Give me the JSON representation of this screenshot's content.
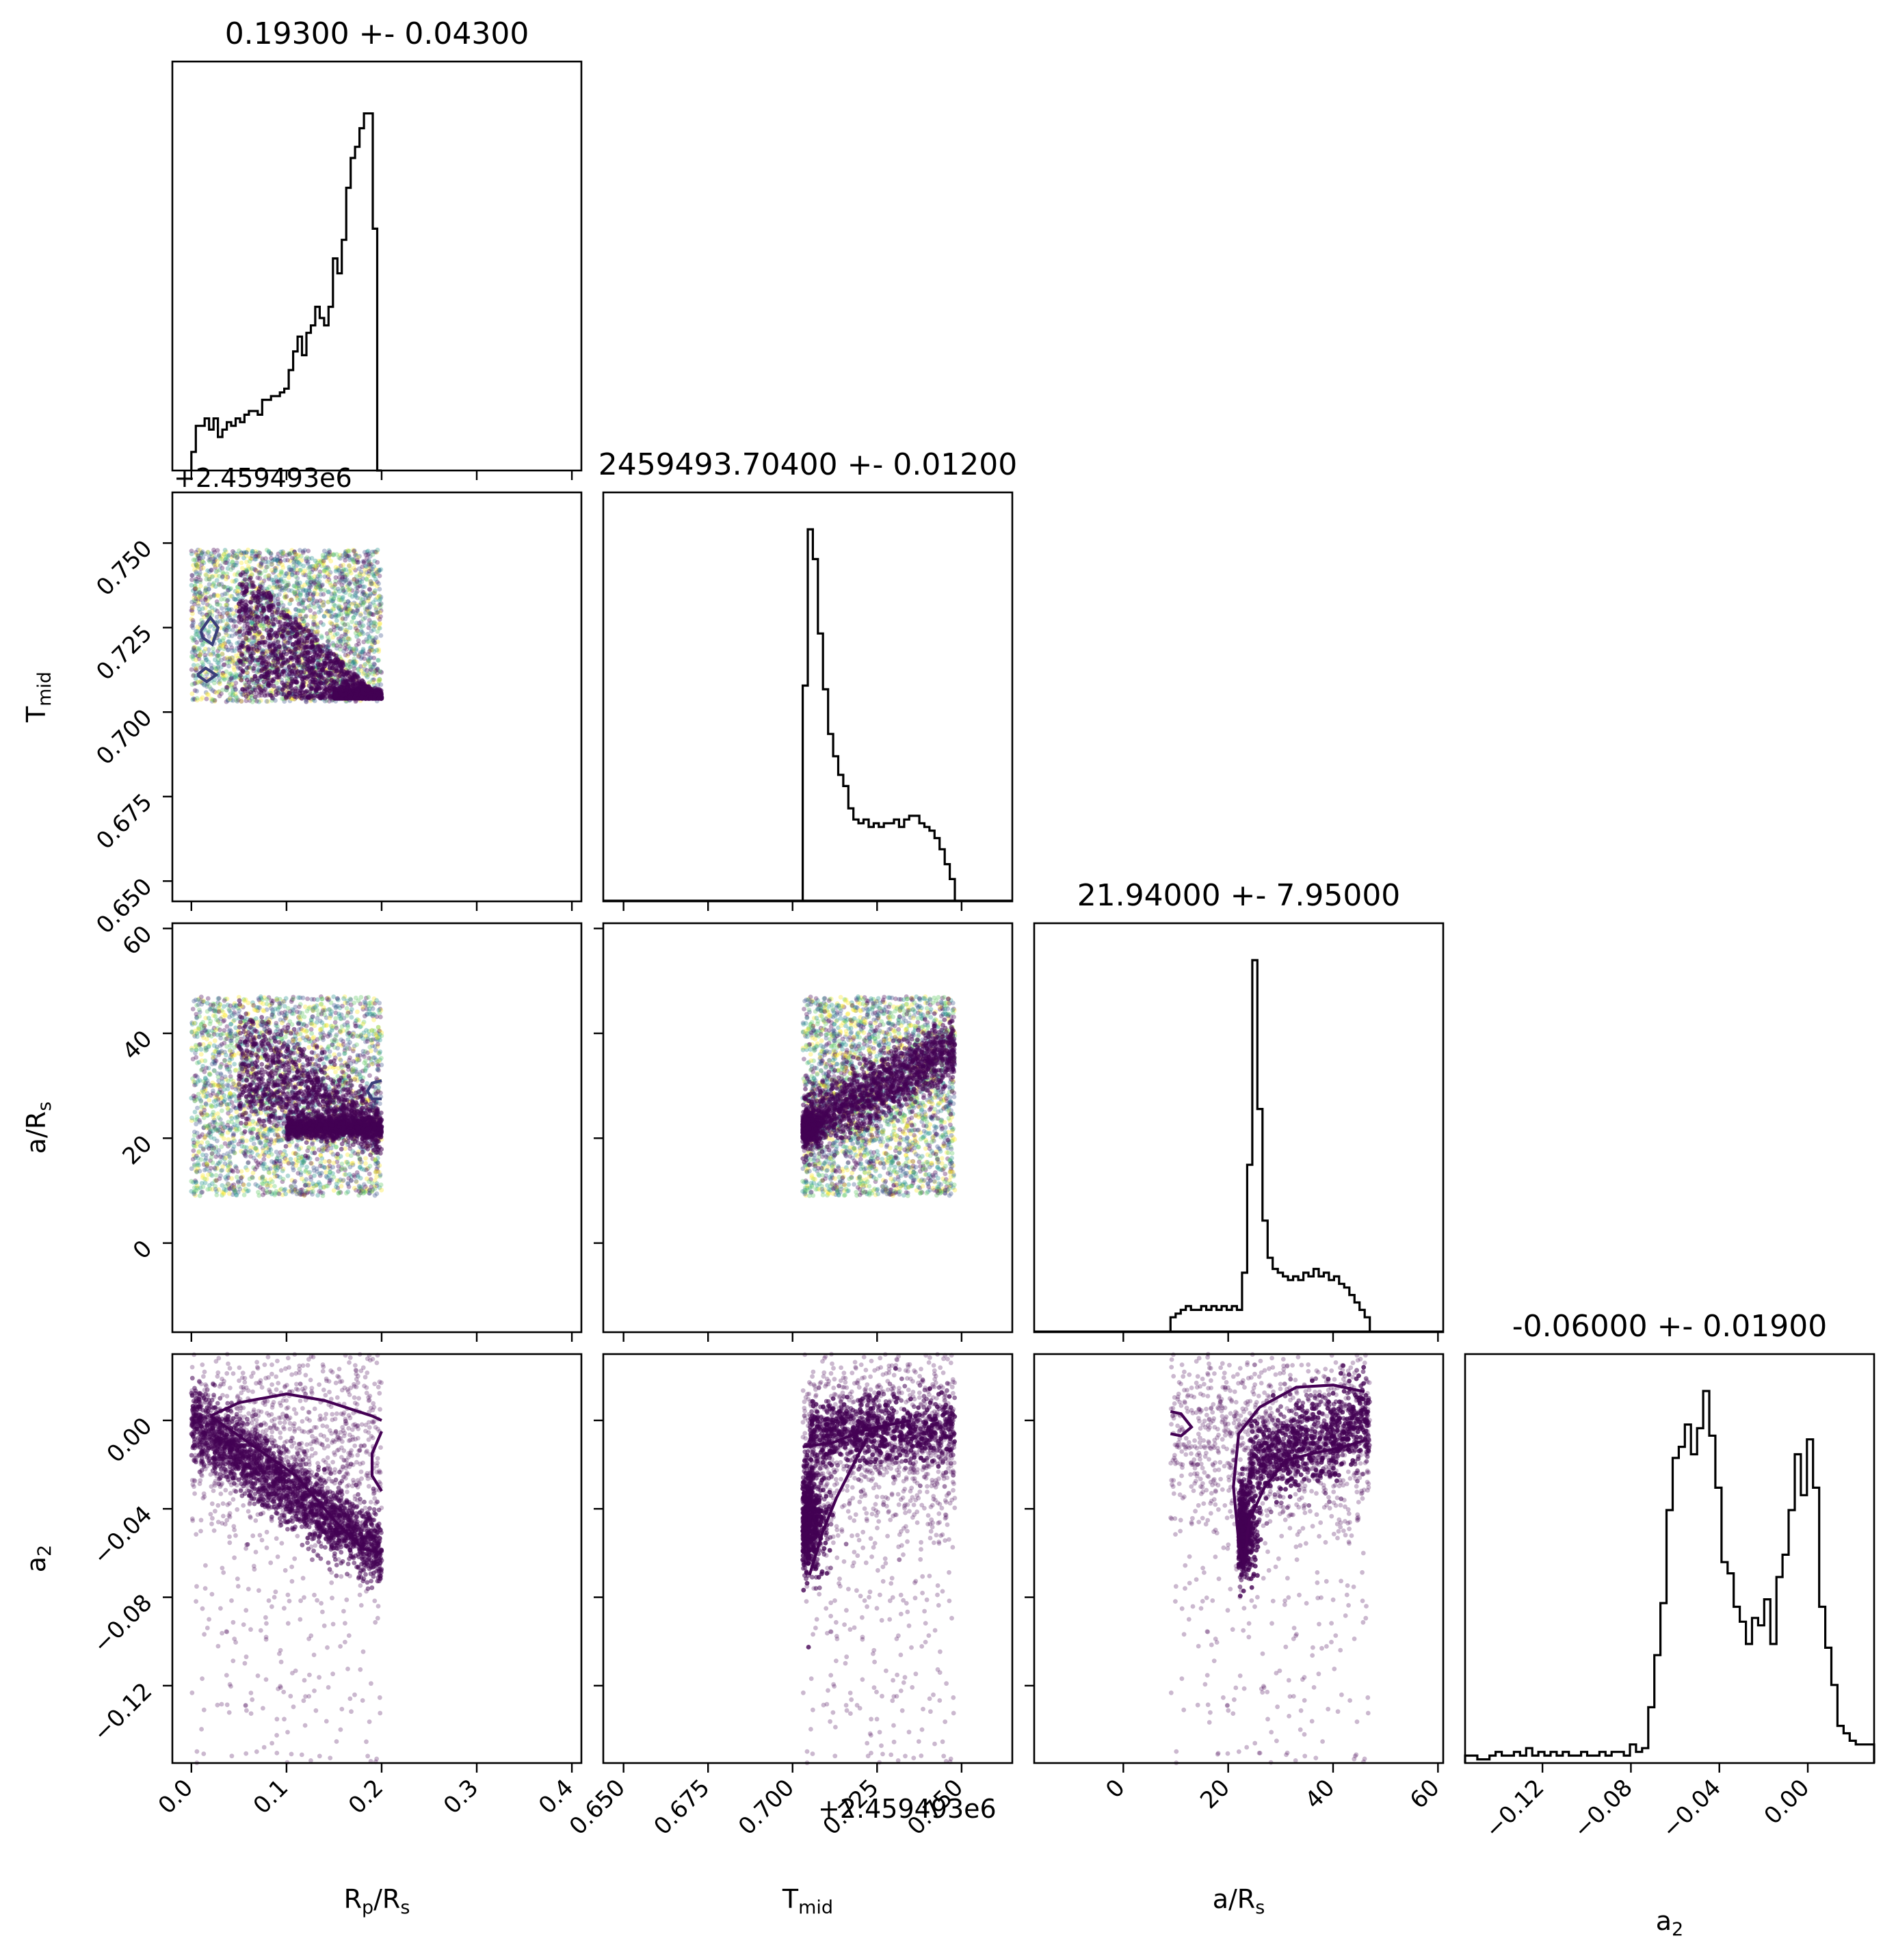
{
  "chart_data": {
    "type": "corner",
    "params": [
      {
        "key": "rp",
        "label": "R",
        "sub": "p",
        "label_rest": "/R",
        "sub2": "s",
        "title": "0.19300 +- 0.04300",
        "range": [
          -0.02,
          0.41
        ],
        "ticks": [
          0.0,
          0.1,
          0.2,
          0.3,
          0.4
        ],
        "tick_labels": [
          "0.0",
          "0.1",
          "0.2",
          "0.3",
          "0.4"
        ]
      },
      {
        "key": "tmid",
        "label": "T",
        "sub": "mid",
        "label_rest": "",
        "sub2": "",
        "title": "2459493.70400 +- 0.01200",
        "offset": "+2.459493e6",
        "range": [
          0.644,
          0.765
        ],
        "ticks": [
          0.65,
          0.675,
          0.7,
          0.725,
          0.75
        ],
        "tick_labels": [
          "0.650",
          "0.675",
          "0.700",
          "0.725",
          "0.750"
        ]
      },
      {
        "key": "ars",
        "label": "a/R",
        "sub": "s",
        "label_rest": "",
        "sub2": "",
        "title": "21.94000 +- 7.95000",
        "range": [
          -17,
          61
        ],
        "ticks": [
          0,
          20,
          40,
          60
        ],
        "tick_labels": [
          "0",
          "20",
          "40",
          "60"
        ]
      },
      {
        "key": "a2",
        "label": "a",
        "sub": "2",
        "label_rest": "",
        "sub2": "",
        "title": "-0.06000 +- 0.01900",
        "range": [
          -0.155,
          0.03
        ],
        "ticks": [
          -0.12,
          -0.08,
          -0.04,
          0.0
        ],
        "tick_labels": [
          "−0.12",
          "−0.08",
          "−0.04",
          "0.00"
        ]
      }
    ],
    "histograms": {
      "rp": {
        "bins": [
          0.0,
          0.2
        ],
        "counts": [
          0.05,
          0.12,
          0.12,
          0.14,
          0.11,
          0.14,
          0.09,
          0.11,
          0.13,
          0.12,
          0.14,
          0.13,
          0.15,
          0.16,
          0.16,
          0.15,
          0.19,
          0.19,
          0.2,
          0.2,
          0.21,
          0.22,
          0.27,
          0.32,
          0.36,
          0.31,
          0.37,
          0.39,
          0.44,
          0.41,
          0.39,
          0.44,
          0.57,
          0.53,
          0.62,
          0.76,
          0.84,
          0.87,
          0.92,
          0.96,
          0.96,
          0.65,
          0.0
        ]
      },
      "tmid": {
        "bins": [
          0.703,
          0.748
        ],
        "counts": [
          0.58,
          1.0,
          0.92,
          0.72,
          0.57,
          0.45,
          0.39,
          0.34,
          0.31,
          0.25,
          0.22,
          0.21,
          0.22,
          0.2,
          0.21,
          0.2,
          0.21,
          0.21,
          0.22,
          0.2,
          0.22,
          0.23,
          0.23,
          0.21,
          0.2,
          0.19,
          0.17,
          0.14,
          0.1,
          0.06
        ]
      },
      "ars": {
        "bins": [
          9,
          47
        ],
        "counts": [
          0.04,
          0.05,
          0.06,
          0.07,
          0.06,
          0.06,
          0.07,
          0.06,
          0.07,
          0.06,
          0.07,
          0.06,
          0.07,
          0.06,
          0.16,
          0.45,
          1.0,
          0.6,
          0.3,
          0.2,
          0.17,
          0.16,
          0.15,
          0.14,
          0.15,
          0.14,
          0.16,
          0.15,
          0.17,
          0.15,
          0.16,
          0.14,
          0.15,
          0.13,
          0.12,
          0.1,
          0.08,
          0.06,
          0.04
        ]
      },
      "a2": {
        "bins": [
          -0.155,
          0.03
        ],
        "counts": [
          0.02,
          0.02,
          0.01,
          0.01,
          0.02,
          0.03,
          0.02,
          0.02,
          0.03,
          0.02,
          0.04,
          0.02,
          0.03,
          0.02,
          0.03,
          0.02,
          0.03,
          0.02,
          0.02,
          0.03,
          0.02,
          0.02,
          0.03,
          0.02,
          0.03,
          0.03,
          0.02,
          0.05,
          0.03,
          0.04,
          0.15,
          0.29,
          0.43,
          0.68,
          0.82,
          0.85,
          0.91,
          0.83,
          0.9,
          1.0,
          0.88,
          0.74,
          0.54,
          0.51,
          0.42,
          0.38,
          0.32,
          0.39,
          0.37,
          0.44,
          0.32,
          0.5,
          0.56,
          0.68,
          0.83,
          0.72,
          0.87,
          0.74,
          0.42,
          0.31,
          0.21,
          0.1,
          0.08,
          0.06,
          0.05,
          0.05,
          0.05
        ]
      }
    },
    "samples": {
      "rp": [
        0.0,
        0.2
      ],
      "tmid": [
        0.703,
        0.748
      ],
      "ars": [
        9,
        47
      ],
      "a2": [
        -0.155,
        0.03
      ]
    },
    "grid": false,
    "colors": {
      "line": "#000000",
      "viridis": [
        "#440154",
        "#3b528b",
        "#21918c",
        "#5ec962",
        "#fde725"
      ]
    }
  }
}
